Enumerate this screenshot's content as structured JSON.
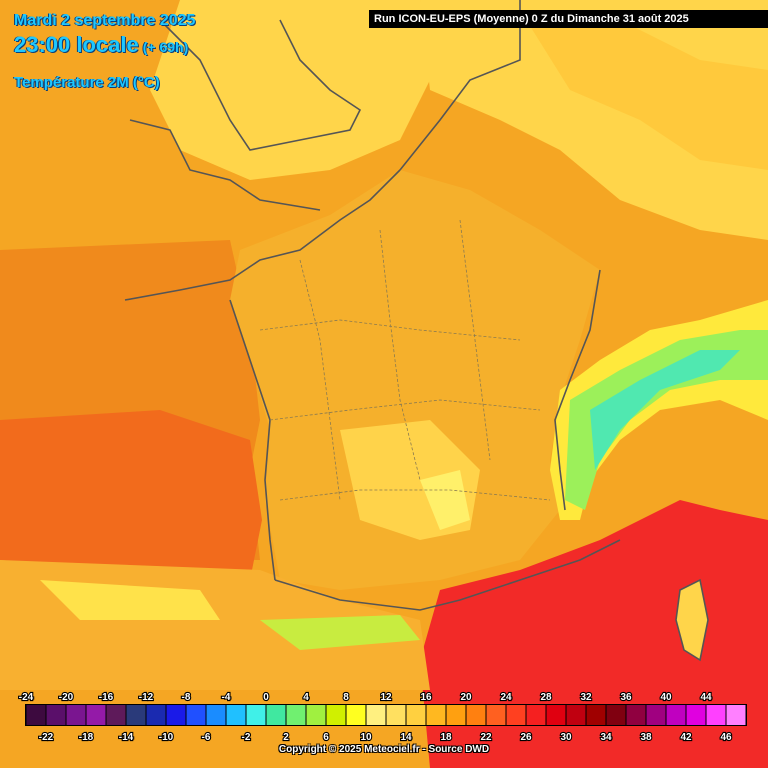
{
  "header": {
    "date": "Mardi 2 septembre 2025",
    "time": "23:00 locale",
    "lead": "(+ 69h)",
    "variable": "Température 2M (°C)"
  },
  "run_info": "Run ICON-EU-EPS (Moyenne) 0 Z du Dimanche 31 août 2025",
  "legend": {
    "top_labels": [
      "-24",
      "-20",
      "-16",
      "-12",
      "-8",
      "-4",
      "0",
      "4",
      "8",
      "12",
      "16",
      "20",
      "24",
      "28",
      "32",
      "36",
      "40",
      "44"
    ],
    "bottom_labels": [
      "-22",
      "-18",
      "-14",
      "-10",
      "-6",
      "-2",
      "2",
      "6",
      "10",
      "14",
      "18",
      "22",
      "26",
      "30",
      "34",
      "38",
      "42",
      "46"
    ],
    "colors": [
      "#3d0a3f",
      "#5a0f6a",
      "#7a1590",
      "#941aa8",
      "#5e1a5a",
      "#2a3a7a",
      "#1a2ab0",
      "#1a1ae8",
      "#2050ff",
      "#1a8cff",
      "#20c0ff",
      "#40f0e8",
      "#40e8a0",
      "#70f070",
      "#a0f040",
      "#d0f000",
      "#ffff20",
      "#fff080",
      "#ffe060",
      "#ffd040",
      "#ffb820",
      "#ffa010",
      "#ff8010",
      "#ff6020",
      "#ff4020",
      "#f52020",
      "#e00010",
      "#c00010",
      "#a00000",
      "#800010",
      "#900040",
      "#a00080",
      "#c000c0",
      "#e000e0",
      "#ff40ff",
      "#ff80ff"
    ]
  },
  "copyright": "Copyright © 2025 Meteociel.fr - Source DWD"
}
